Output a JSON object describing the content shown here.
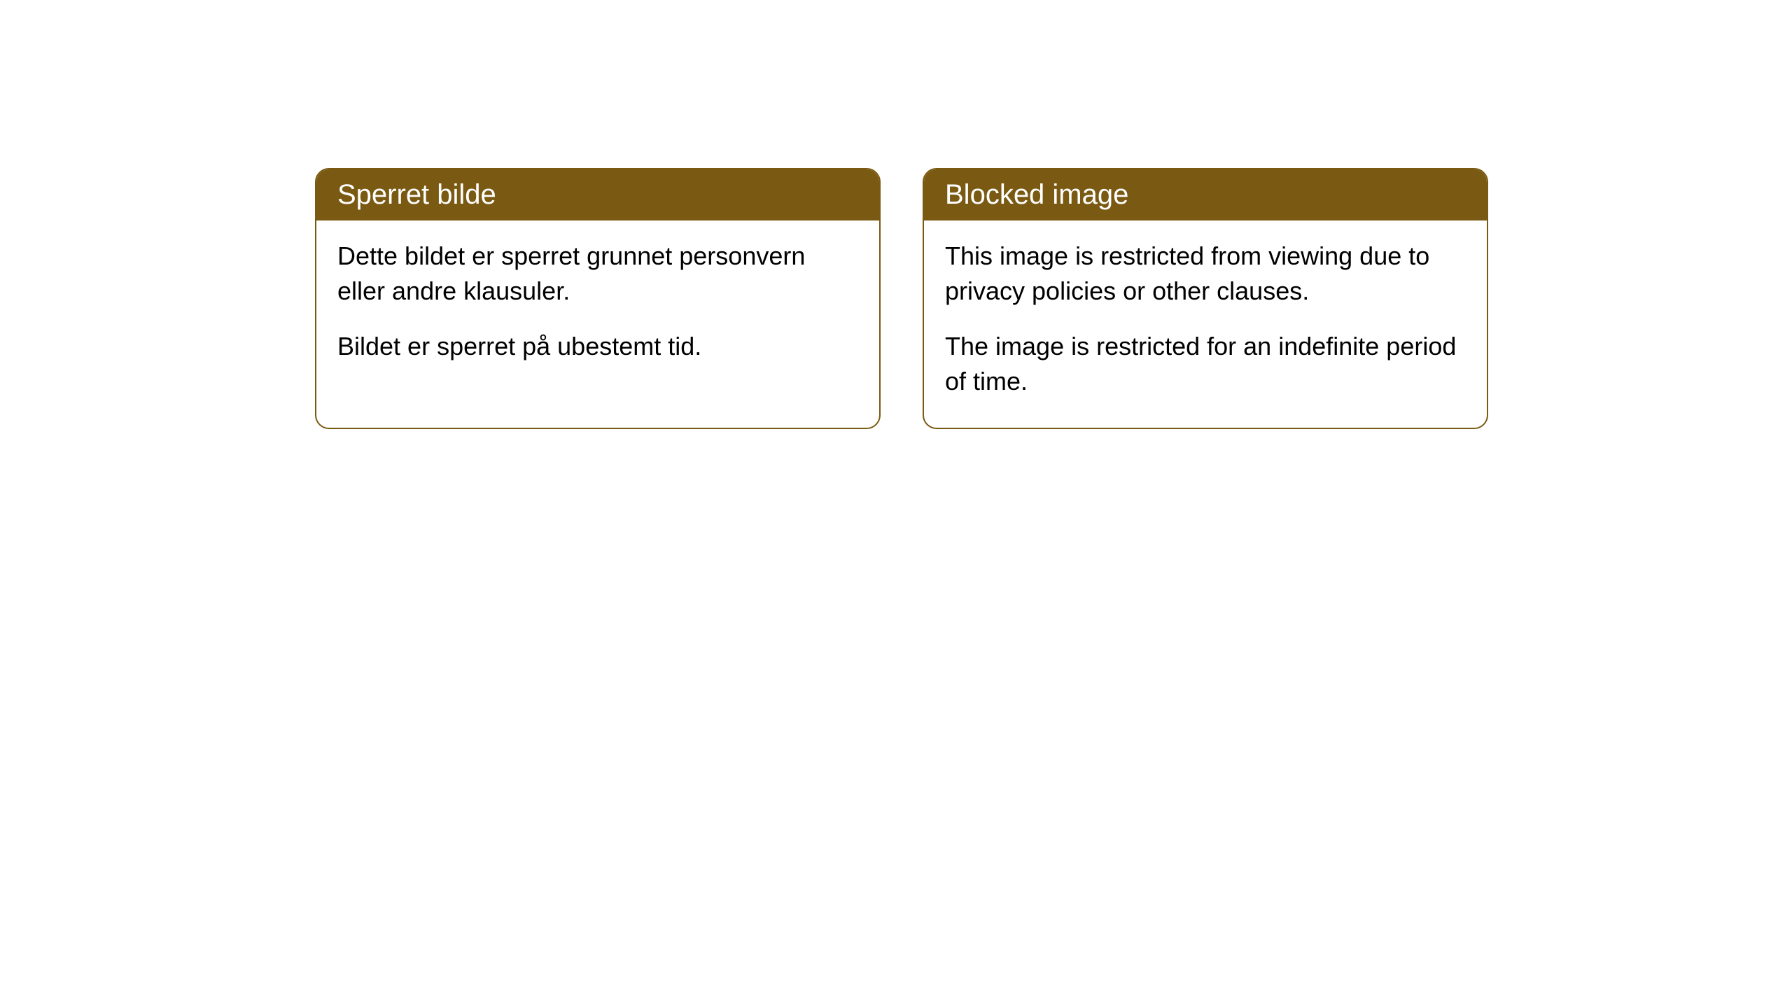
{
  "cards": [
    {
      "title": "Sperret bilde",
      "paragraph1": "Dette bildet er sperret grunnet personvern eller andre klausuler.",
      "paragraph2": "Bildet er sperret på ubestemt tid."
    },
    {
      "title": "Blocked image",
      "paragraph1": "This image is restricted from viewing due to privacy policies or other clauses.",
      "paragraph2": "The image is restricted for an indefinite period of time."
    }
  ],
  "styling": {
    "header_background_color": "#7a5a12",
    "header_text_color": "#ffffff",
    "body_background_color": "#ffffff",
    "body_text_color": "#000000",
    "border_color": "#7a5a12",
    "border_radius": 20,
    "header_fontsize": 40,
    "body_fontsize": 36
  }
}
